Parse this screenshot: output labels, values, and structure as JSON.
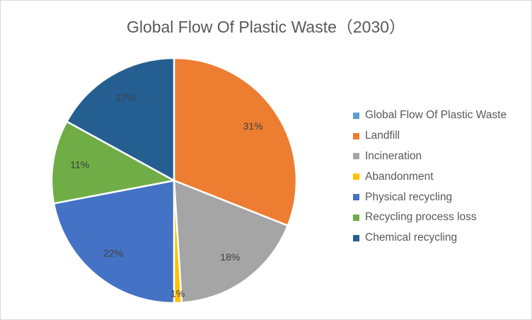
{
  "chart_data": {
    "type": "pie",
    "title": "Global Flow Of Plastic Waste（2030）",
    "legend_position": "right",
    "legend_entries": [
      {
        "name": "Global Flow Of Plastic Waste",
        "color": "#5b9bd5"
      },
      {
        "name": "Landfill",
        "color": "#ed7d31"
      },
      {
        "name": "Incineration",
        "color": "#a5a5a5"
      },
      {
        "name": "Abandonment",
        "color": "#ffc000"
      },
      {
        "name": "Physical recycling",
        "color": "#4472c4"
      },
      {
        "name": "Recycling process loss",
        "color": "#70ad47"
      },
      {
        "name": "Chemical recycling",
        "color": "#255e91"
      }
    ],
    "slices": [
      {
        "name": "Landfill",
        "value": 31,
        "label": "31%",
        "color": "#ed7d31"
      },
      {
        "name": "Incineration",
        "value": 18,
        "label": "18%",
        "color": "#a5a5a5"
      },
      {
        "name": "Abandonment",
        "value": 1,
        "label": "1%",
        "color": "#ffc000"
      },
      {
        "name": "Physical recycling",
        "value": 22,
        "label": "22%",
        "color": "#4472c4"
      },
      {
        "name": "Recycling process loss",
        "value": 11,
        "label": "11%",
        "color": "#70ad47"
      },
      {
        "name": "Chemical recycling",
        "value": 17,
        "label": "17%",
        "color": "#255e91"
      }
    ]
  }
}
